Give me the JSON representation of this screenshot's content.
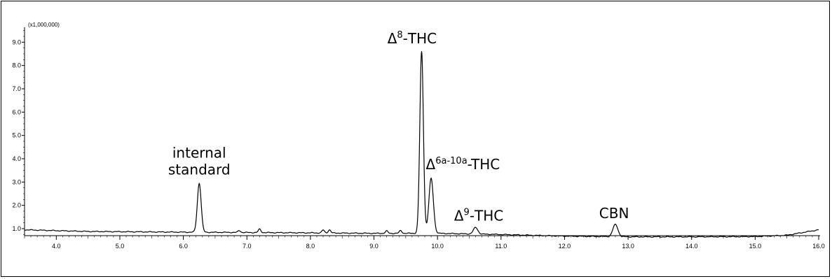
{
  "chart_data": {
    "type": "line",
    "title": "",
    "xlabel": "",
    "ylabel": "",
    "y_scale_label": "(x1,000,000)",
    "xlim": [
      3.5,
      16.0
    ],
    "ylim": [
      0.7,
      9.55
    ],
    "grid": false,
    "x_ticks": [
      "4.0",
      "5.0",
      "6.0",
      "7.0",
      "8.0",
      "9.0",
      "10.0",
      "11.0",
      "12.0",
      "13.0",
      "14.0",
      "15.0",
      "16.0"
    ],
    "y_ticks": [
      "1.0",
      "2.0",
      "3.0",
      "4.0",
      "5.0",
      "6.0",
      "7.0",
      "8.0",
      "9.0"
    ],
    "series": [
      {
        "color": "#000000",
        "baseline": [
          [
            3.5,
            0.95
          ],
          [
            4.5,
            0.88
          ],
          [
            6.0,
            0.85
          ],
          [
            8.0,
            0.82
          ],
          [
            9.0,
            0.8
          ],
          [
            10.0,
            0.8
          ],
          [
            11.0,
            0.75
          ],
          [
            12.0,
            0.68
          ],
          [
            13.0,
            0.65
          ],
          [
            14.0,
            0.65
          ],
          [
            15.0,
            0.66
          ],
          [
            15.5,
            0.72
          ],
          [
            16.0,
            0.95
          ]
        ],
        "peaks": [
          {
            "rt": 6.25,
            "height": 2.95,
            "width": 0.03
          },
          {
            "rt": 6.88,
            "height": 0.92,
            "width": 0.02
          },
          {
            "rt": 7.2,
            "height": 0.98,
            "width": 0.02
          },
          {
            "rt": 8.2,
            "height": 0.94,
            "width": 0.02
          },
          {
            "rt": 8.3,
            "height": 0.95,
            "width": 0.02
          },
          {
            "rt": 9.2,
            "height": 0.9,
            "width": 0.02
          },
          {
            "rt": 9.42,
            "height": 0.92,
            "width": 0.02
          },
          {
            "rt": 9.75,
            "height": 8.6,
            "width": 0.028
          },
          {
            "rt": 9.9,
            "height": 3.15,
            "width": 0.035
          },
          {
            "rt": 10.6,
            "height": 1.05,
            "width": 0.035
          },
          {
            "rt": 12.8,
            "height": 1.18,
            "width": 0.04
          }
        ]
      }
    ],
    "annotations": [
      {
        "id": "internal-standard",
        "lines": [
          "internal",
          "standard"
        ],
        "x": 6.25,
        "y": 4.05
      },
      {
        "id": "delta8",
        "prefix": "Δ",
        "sup": "8",
        "suffix": "-THC",
        "x": 9.6,
        "y": 8.95
      },
      {
        "id": "delta6a10a",
        "prefix": "Δ",
        "sup": "6a-10a",
        "suffix": "-THC",
        "x": 10.4,
        "y": 3.55
      },
      {
        "id": "delta9",
        "prefix": "Δ",
        "sup": "9",
        "suffix": "-THC",
        "x": 10.65,
        "y": 1.35
      },
      {
        "id": "cbn",
        "lines": [
          "CBN"
        ],
        "x": 12.78,
        "y": 1.45
      }
    ]
  }
}
